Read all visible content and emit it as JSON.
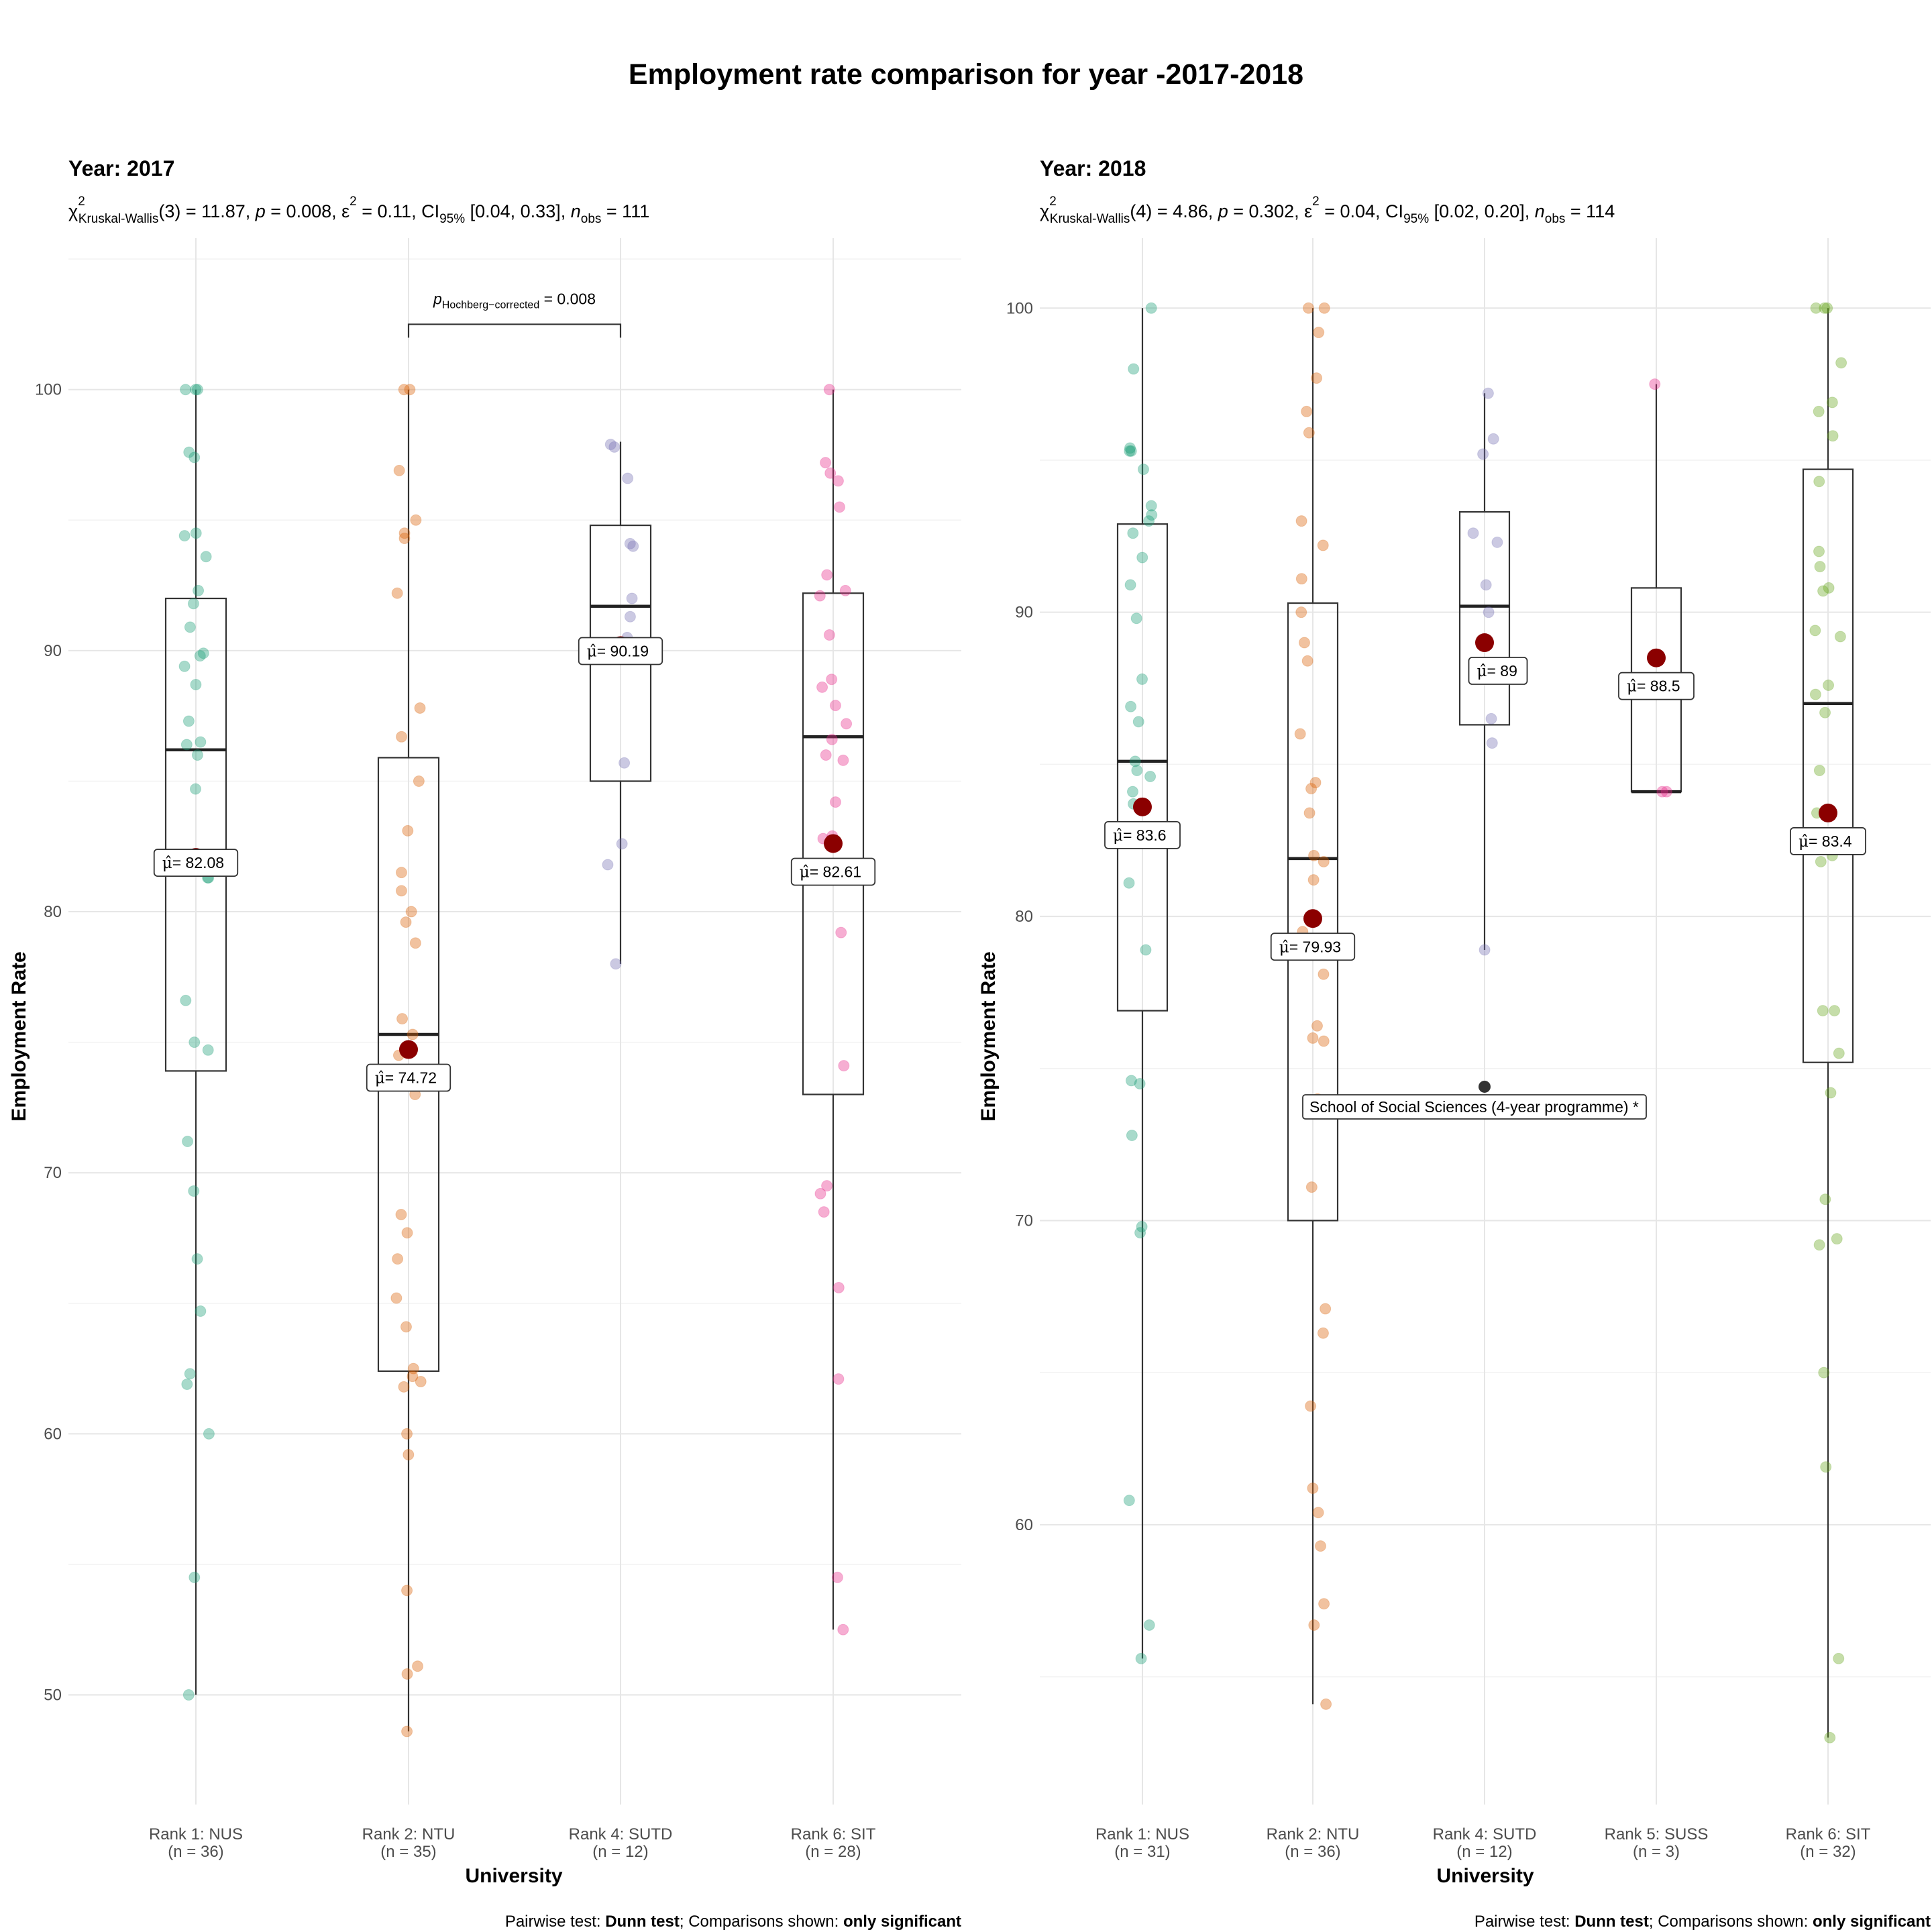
{
  "title": "Employment rate comparison for year -2017-2018",
  "caption": {
    "prefix": "Pairwise test: ",
    "test": "Dunn test",
    "middle": "; Comparisons shown: ",
    "shown": "only significant"
  },
  "colors": {
    "NUS": "#1B9E77",
    "NTU": "#D95F02",
    "SUTD": "#7570B3",
    "SUSS": "#E7298A",
    "SIT_2017": "#E7298A",
    "SIT_2018": "#66A61E",
    "mean": "#8B0000",
    "outlier": "#333333"
  },
  "chart_data": [
    {
      "type": "box",
      "panel_title": "Year: 2017",
      "subtitle": {
        "chi": "χ",
        "chi_sup": "2",
        "chi_sub": "Kruskal-Wallis",
        "df": "(3) = 11.87, ",
        "p_sym": "p",
        "p_val": " = 0.008, ",
        "eps": "ε",
        "eps_sup": "2",
        "eps_val": " = 0.11, CI",
        "ci_sub": "95%",
        "ci_val": " [0.04, 0.33], ",
        "n_sym": "n",
        "n_sub": "obs",
        "n_val": " = 111"
      },
      "xlabel": "University",
      "ylabel": "Employment Rate",
      "ylim": [
        45.8,
        105.8
      ],
      "yticks": [
        50,
        60,
        70,
        80,
        90,
        100
      ],
      "grid": true,
      "categories": [
        {
          "label": "Rank 1: NUS",
          "n": "(n = 36)",
          "color": "#1B9E77",
          "q1": 73.9,
          "median": 86.2,
          "q3": 92.0,
          "wlo": 50.0,
          "whi": 100.0,
          "mean": 82.08,
          "mean_label": "= 82.08",
          "points": [
            100,
            100,
            100,
            97.6,
            97.4,
            94.5,
            94.4,
            93.6,
            92.3,
            91.8,
            90.9,
            89.9,
            89.8,
            89.4,
            88.7,
            87.3,
            86.5,
            86.4,
            86.0,
            84.7,
            81.8,
            81.7,
            81.3,
            81.3,
            76.6,
            75.0,
            74.7,
            71.2,
            69.3,
            66.7,
            64.7,
            62.3,
            61.9,
            60.0,
            54.5,
            50.0
          ]
        },
        {
          "label": "Rank 2: NTU",
          "n": "(n = 35)",
          "color": "#D95F02",
          "q1": 62.4,
          "median": 75.3,
          "q3": 85.9,
          "wlo": 48.6,
          "whi": 100.0,
          "mean": 74.72,
          "mean_label": "= 74.72",
          "points": [
            100,
            100,
            96.9,
            95.0,
            94.5,
            94.3,
            92.2,
            87.8,
            86.7,
            85.0,
            83.1,
            80.8,
            80.0,
            79.6,
            78.8,
            75.3,
            74.5,
            68.4,
            67.7,
            66.7,
            65.2,
            64.1,
            62.5,
            62.2,
            62.0,
            61.8,
            60.0,
            59.2,
            54.0,
            51.1,
            50.8,
            48.6,
            75.9,
            81.5,
            73.0
          ]
        },
        {
          "label": "Rank 4: SUTD",
          "n": "(n = 12)",
          "color": "#7570B3",
          "q1": 85.0,
          "median": 91.7,
          "q3": 94.8,
          "wlo": 78.0,
          "whi": 98.0,
          "mean": 90.19,
          "mean_label": "= 90.19",
          "points": [
            97.9,
            97.8,
            96.6,
            94.1,
            94.0,
            92.0,
            91.3,
            90.5,
            85.7,
            82.6,
            81.8,
            78.0
          ]
        },
        {
          "label": "Rank 6: SIT",
          "n": "(n = 28)",
          "color": "#E7298A",
          "q1": 73.0,
          "median": 86.7,
          "q3": 92.2,
          "wlo": 52.5,
          "whi": 100.0,
          "mean": 82.61,
          "mean_label": "= 82.61",
          "points": [
            100,
            97.2,
            96.8,
            96.5,
            95.5,
            92.9,
            92.3,
            92.1,
            90.6,
            87.9,
            88.9,
            88.6,
            87.2,
            86.6,
            85.8,
            84.2,
            82.9,
            82.8,
            79.2,
            74.1,
            69.5,
            69.2,
            68.5,
            65.6,
            62.1,
            54.5,
            52.5,
            86.0
          ]
        }
      ],
      "comparison": {
        "from": 1,
        "to": 2,
        "y": 102.5,
        "p_sym": "p",
        "p_sub": "Hochberg−corrected",
        "p_val": " = 0.008"
      }
    },
    {
      "type": "box",
      "panel_title": "Year: 2018",
      "subtitle": {
        "chi": "χ",
        "chi_sup": "2",
        "chi_sub": "Kruskal-Wallis",
        "df": "(4) = 4.86, ",
        "p_sym": "p",
        "p_val": " = 0.302, ",
        "eps": "ε",
        "eps_sup": "2",
        "eps_val": " = 0.04, CI",
        "ci_sub": "95%",
        "ci_val": " [0.02, 0.20], ",
        "n_sym": "n",
        "n_sub": "obs",
        "n_val": " = 114"
      },
      "xlabel": "University",
      "ylabel": "Employment Rate",
      "ylim": [
        50.8,
        102.3
      ],
      "yticks": [
        60,
        70,
        80,
        90,
        100
      ],
      "grid": true,
      "categories": [
        {
          "label": "Rank 1: NUS",
          "n": "(n = 31)",
          "color": "#1B9E77",
          "q1": 76.9,
          "median": 85.1,
          "q3": 92.9,
          "wlo": 55.6,
          "whi": 100.0,
          "mean": 83.6,
          "mean_label": "= 83.6",
          "points": [
            100,
            98.0,
            95.4,
            95.3,
            95.3,
            94.7,
            93.5,
            93.2,
            92.6,
            91.8,
            90.9,
            89.8,
            87.8,
            86.9,
            86.4,
            85.1,
            84.8,
            84.6,
            84.1,
            83.7,
            81.1,
            78.9,
            74.6,
            74.5,
            72.8,
            69.8,
            69.6,
            60.8,
            56.7,
            55.6,
            93.0
          ]
        },
        {
          "label": "Rank 2: NTU",
          "n": "(n = 36)",
          "color": "#D95F02",
          "q1": 70.0,
          "median": 81.9,
          "q3": 90.3,
          "wlo": 54.1,
          "whi": 100.0,
          "mean": 79.93,
          "mean_label": "= 79.93",
          "points": [
            100,
            100,
            99.2,
            97.7,
            96.6,
            95.9,
            93.0,
            92.2,
            91.1,
            90.0,
            89.0,
            88.4,
            86.0,
            84.4,
            84.2,
            83.4,
            82.0,
            81.8,
            81.2,
            80.0,
            79.5,
            78.1,
            76.4,
            76.0,
            75.9,
            74.0,
            71.1,
            67.1,
            66.3,
            63.9,
            61.2,
            60.4,
            59.3,
            57.4,
            56.7,
            54.1
          ]
        },
        {
          "label": "Rank 4: SUTD",
          "n": "(n = 12)",
          "color": "#7570B3",
          "q1": 86.3,
          "median": 90.2,
          "q3": 93.3,
          "wlo": 78.9,
          "whi": 97.2,
          "mean": 89.0,
          "mean_label": "= 89",
          "points": [
            97.2,
            95.7,
            95.2,
            92.6,
            92.3,
            90.9,
            90.0,
            89.0,
            86.5,
            85.7,
            78.9
          ]
        },
        {
          "label": "Rank 5: SUSS",
          "n": "(n = 3)",
          "color": "#E7298A",
          "q1": 84.1,
          "median": 84.1,
          "q3": 90.8,
          "wlo": 84.1,
          "whi": 97.5,
          "mean": 88.5,
          "mean_label": "= 88.5",
          "points": [
            97.5,
            84.1,
            84.1
          ]
        },
        {
          "label": "Rank 6: SIT",
          "n": "(n = 32)",
          "color": "#66A61E",
          "q1": 75.2,
          "median": 87.0,
          "q3": 94.7,
          "wlo": 53.0,
          "whi": 100.0,
          "mean": 83.4,
          "mean_label": "= 83.4",
          "points": [
            100,
            100,
            100,
            98.2,
            96.9,
            96.6,
            95.8,
            94.3,
            91.5,
            90.8,
            90.7,
            89.4,
            89.2,
            87.6,
            87.3,
            86.7,
            84.8,
            82.0,
            81.8,
            76.9,
            76.9,
            75.5,
            74.2,
            70.7,
            69.4,
            69.2,
            65.0,
            61.9,
            55.6,
            53.0,
            83.4,
            92.0
          ]
        }
      ],
      "outlier": {
        "category": 2,
        "y": 74.4,
        "label": "School of Social Sciences (4-year programme) *"
      }
    }
  ]
}
